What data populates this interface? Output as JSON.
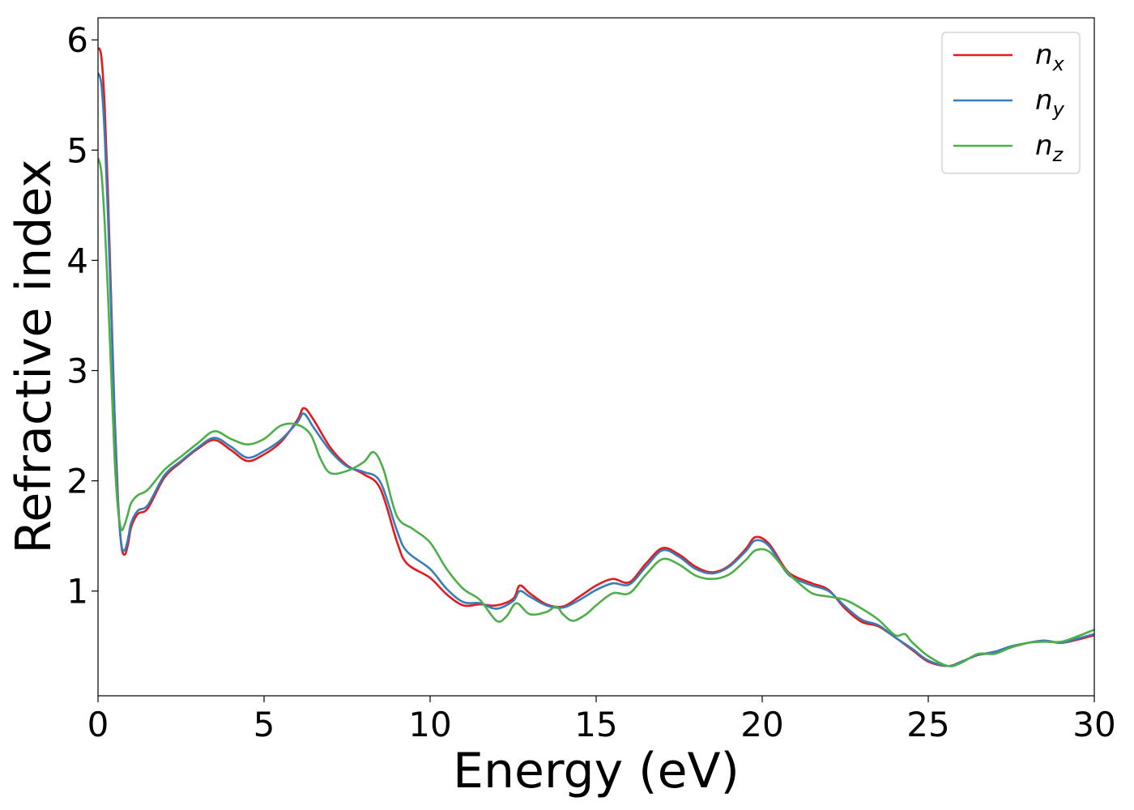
{
  "chart_data": {
    "type": "line",
    "xlabel": "Energy (eV)",
    "ylabel": "Refractive index",
    "xlim": [
      0,
      30
    ],
    "ylim": [
      0.05,
      6.2
    ],
    "xticks": [
      "0",
      "5",
      "10",
      "15",
      "20",
      "25",
      "30"
    ],
    "yticks": [
      "1",
      "2",
      "3",
      "4",
      "5",
      "6"
    ],
    "grid": false,
    "legend_position": "top-right",
    "series": [
      {
        "name": "n",
        "subscript": "x",
        "color": "#e41a1c",
        "points": [
          [
            0,
            5.93
          ],
          [
            0.1,
            5.85
          ],
          [
            0.2,
            5.4
          ],
          [
            0.3,
            4.6
          ],
          [
            0.4,
            3.6
          ],
          [
            0.5,
            2.6
          ],
          [
            0.6,
            1.85
          ],
          [
            0.7,
            1.42
          ],
          [
            0.8,
            1.33
          ],
          [
            0.9,
            1.42
          ],
          [
            1.0,
            1.58
          ],
          [
            1.2,
            1.7
          ],
          [
            1.5,
            1.75
          ],
          [
            2.0,
            2.03
          ],
          [
            2.5,
            2.17
          ],
          [
            3.0,
            2.29
          ],
          [
            3.5,
            2.37
          ],
          [
            4.0,
            2.28
          ],
          [
            4.5,
            2.18
          ],
          [
            5.0,
            2.24
          ],
          [
            5.5,
            2.35
          ],
          [
            6.0,
            2.55
          ],
          [
            6.2,
            2.66
          ],
          [
            6.5,
            2.55
          ],
          [
            7.0,
            2.3
          ],
          [
            7.5,
            2.14
          ],
          [
            8.0,
            2.06
          ],
          [
            8.5,
            1.93
          ],
          [
            9.0,
            1.45
          ],
          [
            9.3,
            1.25
          ],
          [
            10.0,
            1.12
          ],
          [
            10.5,
            0.97
          ],
          [
            11.0,
            0.87
          ],
          [
            11.5,
            0.88
          ],
          [
            12.0,
            0.87
          ],
          [
            12.5,
            0.93
          ],
          [
            12.7,
            1.05
          ],
          [
            13.0,
            0.98
          ],
          [
            13.5,
            0.88
          ],
          [
            14.0,
            0.86
          ],
          [
            14.5,
            0.95
          ],
          [
            15.0,
            1.05
          ],
          [
            15.5,
            1.11
          ],
          [
            16.0,
            1.08
          ],
          [
            16.5,
            1.25
          ],
          [
            17.0,
            1.39
          ],
          [
            17.5,
            1.33
          ],
          [
            18.0,
            1.22
          ],
          [
            18.5,
            1.17
          ],
          [
            19.0,
            1.23
          ],
          [
            19.5,
            1.38
          ],
          [
            19.8,
            1.49
          ],
          [
            20.2,
            1.43
          ],
          [
            20.7,
            1.2
          ],
          [
            21.0,
            1.13
          ],
          [
            21.5,
            1.07
          ],
          [
            22.0,
            1.01
          ],
          [
            22.5,
            0.84
          ],
          [
            23.0,
            0.72
          ],
          [
            23.5,
            0.68
          ],
          [
            24.0,
            0.58
          ],
          [
            24.5,
            0.47
          ],
          [
            25.0,
            0.36
          ],
          [
            25.6,
            0.32
          ],
          [
            26.0,
            0.36
          ],
          [
            26.5,
            0.42
          ],
          [
            27.0,
            0.44
          ],
          [
            27.5,
            0.49
          ],
          [
            28.0,
            0.53
          ],
          [
            28.5,
            0.55
          ],
          [
            29.0,
            0.53
          ],
          [
            29.5,
            0.56
          ],
          [
            30.0,
            0.6
          ]
        ]
      },
      {
        "name": "n",
        "subscript": "y",
        "color": "#377eb8",
        "points": [
          [
            0,
            5.7
          ],
          [
            0.1,
            5.6
          ],
          [
            0.2,
            5.15
          ],
          [
            0.3,
            4.4
          ],
          [
            0.4,
            3.5
          ],
          [
            0.5,
            2.55
          ],
          [
            0.6,
            1.82
          ],
          [
            0.7,
            1.43
          ],
          [
            0.8,
            1.37
          ],
          [
            0.9,
            1.47
          ],
          [
            1.0,
            1.62
          ],
          [
            1.2,
            1.73
          ],
          [
            1.5,
            1.78
          ],
          [
            2.0,
            2.05
          ],
          [
            2.5,
            2.18
          ],
          [
            3.0,
            2.3
          ],
          [
            3.5,
            2.39
          ],
          [
            4.0,
            2.31
          ],
          [
            4.5,
            2.21
          ],
          [
            5.0,
            2.27
          ],
          [
            5.5,
            2.37
          ],
          [
            6.0,
            2.53
          ],
          [
            6.2,
            2.61
          ],
          [
            6.5,
            2.48
          ],
          [
            7.0,
            2.27
          ],
          [
            7.5,
            2.13
          ],
          [
            8.0,
            2.08
          ],
          [
            8.5,
            1.99
          ],
          [
            9.0,
            1.55
          ],
          [
            9.3,
            1.36
          ],
          [
            10.0,
            1.2
          ],
          [
            10.5,
            1.02
          ],
          [
            11.0,
            0.9
          ],
          [
            11.5,
            0.89
          ],
          [
            12.0,
            0.84
          ],
          [
            12.5,
            0.91
          ],
          [
            12.7,
            1.0
          ],
          [
            13.0,
            0.95
          ],
          [
            13.5,
            0.87
          ],
          [
            14.0,
            0.85
          ],
          [
            14.5,
            0.92
          ],
          [
            15.0,
            1.01
          ],
          [
            15.5,
            1.07
          ],
          [
            16.0,
            1.06
          ],
          [
            16.5,
            1.22
          ],
          [
            17.0,
            1.37
          ],
          [
            17.5,
            1.31
          ],
          [
            18.0,
            1.2
          ],
          [
            18.5,
            1.16
          ],
          [
            19.0,
            1.22
          ],
          [
            19.5,
            1.36
          ],
          [
            19.8,
            1.46
          ],
          [
            20.2,
            1.41
          ],
          [
            20.7,
            1.18
          ],
          [
            21.0,
            1.11
          ],
          [
            21.5,
            1.05
          ],
          [
            22.0,
            1.0
          ],
          [
            22.5,
            0.86
          ],
          [
            23.0,
            0.74
          ],
          [
            23.5,
            0.69
          ],
          [
            24.0,
            0.58
          ],
          [
            24.5,
            0.48
          ],
          [
            25.0,
            0.37
          ],
          [
            25.6,
            0.32
          ],
          [
            26.0,
            0.36
          ],
          [
            26.5,
            0.42
          ],
          [
            27.0,
            0.45
          ],
          [
            27.5,
            0.5
          ],
          [
            28.0,
            0.53
          ],
          [
            28.5,
            0.55
          ],
          [
            29.0,
            0.53
          ],
          [
            29.5,
            0.57
          ],
          [
            30.0,
            0.61
          ]
        ]
      },
      {
        "name": "n",
        "subscript": "z",
        "color": "#4daf4a",
        "points": [
          [
            0,
            4.93
          ],
          [
            0.1,
            4.8
          ],
          [
            0.2,
            4.35
          ],
          [
            0.3,
            3.7
          ],
          [
            0.4,
            2.95
          ],
          [
            0.5,
            2.2
          ],
          [
            0.6,
            1.75
          ],
          [
            0.7,
            1.56
          ],
          [
            0.8,
            1.6
          ],
          [
            0.9,
            1.7
          ],
          [
            1.0,
            1.8
          ],
          [
            1.2,
            1.87
          ],
          [
            1.5,
            1.92
          ],
          [
            2.0,
            2.1
          ],
          [
            2.5,
            2.22
          ],
          [
            3.0,
            2.34
          ],
          [
            3.5,
            2.45
          ],
          [
            4.0,
            2.38
          ],
          [
            4.5,
            2.33
          ],
          [
            5.0,
            2.38
          ],
          [
            5.5,
            2.5
          ],
          [
            6.0,
            2.51
          ],
          [
            6.4,
            2.42
          ],
          [
            6.7,
            2.2
          ],
          [
            7.0,
            2.07
          ],
          [
            7.5,
            2.09
          ],
          [
            8.0,
            2.17
          ],
          [
            8.3,
            2.26
          ],
          [
            8.6,
            2.1
          ],
          [
            9.0,
            1.68
          ],
          [
            9.5,
            1.56
          ],
          [
            10.0,
            1.44
          ],
          [
            10.5,
            1.2
          ],
          [
            11.0,
            1.02
          ],
          [
            11.5,
            0.92
          ],
          [
            12.0,
            0.73
          ],
          [
            12.3,
            0.77
          ],
          [
            12.6,
            0.89
          ],
          [
            13.0,
            0.79
          ],
          [
            13.5,
            0.81
          ],
          [
            13.8,
            0.86
          ],
          [
            14.0,
            0.79
          ],
          [
            14.3,
            0.73
          ],
          [
            14.7,
            0.79
          ],
          [
            15.0,
            0.87
          ],
          [
            15.5,
            0.98
          ],
          [
            16.0,
            0.98
          ],
          [
            16.5,
            1.15
          ],
          [
            17.0,
            1.29
          ],
          [
            17.5,
            1.24
          ],
          [
            18.0,
            1.14
          ],
          [
            18.5,
            1.11
          ],
          [
            19.0,
            1.15
          ],
          [
            19.5,
            1.28
          ],
          [
            19.8,
            1.37
          ],
          [
            20.2,
            1.36
          ],
          [
            20.7,
            1.19
          ],
          [
            21.0,
            1.1
          ],
          [
            21.5,
            0.98
          ],
          [
            22.0,
            0.95
          ],
          [
            22.5,
            0.92
          ],
          [
            23.0,
            0.84
          ],
          [
            23.5,
            0.74
          ],
          [
            24.0,
            0.6
          ],
          [
            24.3,
            0.61
          ],
          [
            24.5,
            0.54
          ],
          [
            25.0,
            0.41
          ],
          [
            25.6,
            0.32
          ],
          [
            26.0,
            0.35
          ],
          [
            26.5,
            0.43
          ],
          [
            27.0,
            0.43
          ],
          [
            27.5,
            0.49
          ],
          [
            28.0,
            0.53
          ],
          [
            28.5,
            0.54
          ],
          [
            29.0,
            0.54
          ],
          [
            29.5,
            0.59
          ],
          [
            30.0,
            0.65
          ]
        ]
      }
    ]
  }
}
